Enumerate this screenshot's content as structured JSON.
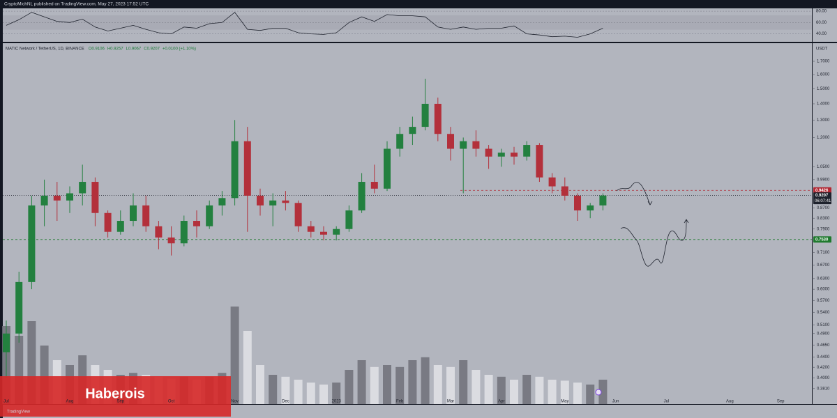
{
  "header": {
    "publisher": "CryptoMichNL published on TradingView.com, May 27, 2023 17:52 UTC",
    "logo": "TradingView",
    "banner": "Haberois"
  },
  "chart_data": [
    {
      "type": "candlestick",
      "symbol": "MATIC Network / TetherUS, 1D, BINANCE",
      "ohlc": [
        "O0.9106",
        "H0.9257",
        "L0.9067",
        "C0.9207",
        "+0.0100 (+1.10%)"
      ],
      "currency": "USDT",
      "categories": [
        "Jul",
        null,
        null,
        null,
        null,
        "Aug",
        null,
        null,
        null,
        "Sep",
        null,
        null,
        null,
        "Oct",
        null,
        null,
        null,
        null,
        "Nov",
        null,
        null,
        null,
        "Dec",
        null,
        null,
        null,
        "2023",
        null,
        null,
        null,
        null,
        "Feb",
        null,
        null,
        null,
        "Mar",
        null,
        null,
        null,
        "Apr",
        null,
        null,
        null,
        null,
        "May",
        null,
        null,
        null,
        "Jun",
        null,
        null,
        null,
        "Jul",
        null,
        null,
        null,
        null,
        "Aug",
        null,
        null,
        null,
        "Sep",
        null
      ],
      "open": [
        0.45,
        0.49,
        0.62,
        0.88,
        0.92,
        0.9,
        0.93,
        0.98,
        0.85,
        0.78,
        0.82,
        0.88,
        0.8,
        0.76,
        0.74,
        0.82,
        0.8,
        0.88,
        0.91,
        1.18,
        0.92,
        0.88,
        0.9,
        0.89,
        0.8,
        0.78,
        0.77,
        0.79,
        0.86,
        0.98,
        0.95,
        1.14,
        1.22,
        1.26,
        1.4,
        1.22,
        1.14,
        1.18,
        1.14,
        1.1,
        1.12,
        1.1,
        1.16,
        1.0,
        0.96,
        0.92,
        0.86,
        0.88,
        null,
        null,
        null,
        null,
        null,
        null,
        null,
        null,
        null,
        null,
        null,
        null,
        null,
        null,
        null
      ],
      "high": [
        0.52,
        0.65,
        0.92,
        0.99,
        0.98,
        0.96,
        1.06,
        1.0,
        0.86,
        0.86,
        0.93,
        0.92,
        0.82,
        0.8,
        0.84,
        0.86,
        0.9,
        0.94,
        1.3,
        1.26,
        0.95,
        0.93,
        0.94,
        0.9,
        0.82,
        0.8,
        0.8,
        0.88,
        1.02,
        1.06,
        1.18,
        1.26,
        1.32,
        1.57,
        1.44,
        1.26,
        1.2,
        1.24,
        1.16,
        1.14,
        1.15,
        1.18,
        1.17,
        1.02,
        1.0,
        0.93,
        0.89,
        0.93,
        null,
        null,
        null,
        null,
        null,
        null,
        null,
        null,
        null,
        null,
        null,
        null,
        null,
        null,
        null
      ],
      "low": [
        0.4,
        0.47,
        0.6,
        0.8,
        0.82,
        0.85,
        0.88,
        0.8,
        0.76,
        0.77,
        0.8,
        0.78,
        0.72,
        0.7,
        0.73,
        0.76,
        0.79,
        0.84,
        0.88,
        0.78,
        0.84,
        0.8,
        0.86,
        0.78,
        0.76,
        0.75,
        0.75,
        0.78,
        0.85,
        0.93,
        0.94,
        1.1,
        1.16,
        1.24,
        1.18,
        1.08,
        0.93,
        1.1,
        1.04,
        1.05,
        1.06,
        1.08,
        0.98,
        0.93,
        0.9,
        0.82,
        0.83,
        0.86,
        null,
        null,
        null,
        null,
        null,
        null,
        null,
        null,
        null,
        null,
        null,
        null,
        null,
        null,
        null
      ],
      "close": [
        0.49,
        0.62,
        0.88,
        0.92,
        0.9,
        0.93,
        0.98,
        0.85,
        0.78,
        0.82,
        0.88,
        0.8,
        0.76,
        0.74,
        0.82,
        0.8,
        0.88,
        0.91,
        1.18,
        0.92,
        0.88,
        0.9,
        0.89,
        0.8,
        0.78,
        0.77,
        0.79,
        0.86,
        0.98,
        0.95,
        1.14,
        1.22,
        1.26,
        1.4,
        1.22,
        1.14,
        1.18,
        1.14,
        1.1,
        1.12,
        1.1,
        1.16,
        1.0,
        0.96,
        0.92,
        0.86,
        0.88,
        0.9207,
        null,
        null,
        null,
        null,
        null,
        null,
        null,
        null,
        null,
        null,
        null,
        null,
        null,
        null,
        null
      ],
      "volume": [
        80,
        70,
        85,
        60,
        45,
        40,
        50,
        40,
        35,
        30,
        32,
        30,
        28,
        26,
        28,
        25,
        28,
        32,
        100,
        75,
        40,
        30,
        28,
        25,
        22,
        20,
        22,
        35,
        45,
        38,
        40,
        38,
        45,
        48,
        40,
        38,
        45,
        35,
        30,
        28,
        25,
        30,
        28,
        25,
        24,
        22,
        20,
        25,
        null,
        null,
        null,
        null,
        null,
        null,
        null,
        null,
        null,
        null,
        null,
        null,
        null,
        null,
        null
      ],
      "volume_lim": [
        0,
        100
      ],
      "up_color": "#23803f",
      "down_color": "#b3303b",
      "log_scale": true,
      "ylim": [
        0.355,
        1.835
      ],
      "yticks": [
        {
          "value": 1.7,
          "label": "1.7000"
        },
        {
          "value": 1.6,
          "label": "1.6000"
        },
        {
          "value": 1.5,
          "label": "1.5000"
        },
        {
          "value": 1.4,
          "label": "1.4000"
        },
        {
          "value": 1.3,
          "label": "1.3000"
        },
        {
          "value": 1.2,
          "label": "1.2000"
        },
        {
          "value": 1.05,
          "label": "1.0500"
        },
        {
          "value": 0.99,
          "label": "0.9900"
        },
        {
          "value": 0.87,
          "label": "0.8700"
        },
        {
          "value": 0.83,
          "label": "0.8300"
        },
        {
          "value": 0.79,
          "label": "0.7900"
        },
        {
          "value": 0.71,
          "label": "0.7100"
        },
        {
          "value": 0.67,
          "label": "0.6700"
        },
        {
          "value": 0.63,
          "label": "0.6300"
        },
        {
          "value": 0.6,
          "label": "0.6000"
        },
        {
          "value": 0.57,
          "label": "0.5700"
        },
        {
          "value": 0.54,
          "label": "0.5400"
        },
        {
          "value": 0.51,
          "label": "0.5100"
        },
        {
          "value": 0.49,
          "label": "0.4900"
        },
        {
          "value": 0.465,
          "label": "0.4650"
        },
        {
          "value": 0.44,
          "label": "0.4400"
        },
        {
          "value": 0.42,
          "label": "0.4200"
        },
        {
          "value": 0.4,
          "label": "0.4000"
        },
        {
          "value": 0.381,
          "label": "0.3810"
        }
      ],
      "price_lines": [
        {
          "value": 0.9426,
          "label": "0.9426",
          "color": "#b22833",
          "style": "dashed"
        },
        {
          "value": 0.9207,
          "label": "0.9207",
          "countdown": "06:07:41",
          "color": "#1e222d",
          "style": "dotted"
        },
        {
          "value": 0.753,
          "label": "0.7530",
          "color": "#1f7a2e",
          "style": "dashed"
        }
      ]
    },
    {
      "type": "line",
      "values": [
        55,
        65,
        78,
        70,
        62,
        60,
        66,
        52,
        45,
        50,
        55,
        48,
        42,
        40,
        52,
        50,
        58,
        60,
        78,
        48,
        46,
        50,
        50,
        42,
        40,
        39,
        42,
        60,
        70,
        62,
        74,
        72,
        72,
        70,
        52,
        48,
        52,
        48,
        50,
        50,
        54,
        40,
        38,
        35,
        36,
        34,
        40,
        50
      ],
      "color": "#1e222d",
      "ylim": [
        26,
        85
      ],
      "yticks": [
        {
          "value": 80,
          "label": "80.00"
        },
        {
          "value": 60,
          "label": "60.00"
        },
        {
          "value": 40,
          "label": "40.00"
        }
      ]
    }
  ]
}
